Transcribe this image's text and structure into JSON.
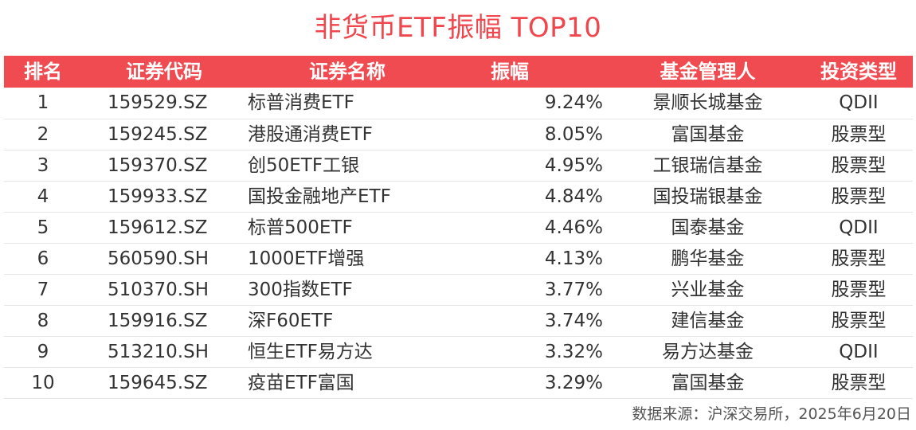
{
  "title": "非货币ETF振幅 TOP10",
  "header": {
    "rank": "排名",
    "code": "证券代码",
    "name": "证券名称",
    "amplitude": "振幅",
    "manager": "基金管理人",
    "type": "投资类型"
  },
  "rows": [
    {
      "rank": "1",
      "code": "159529.SZ",
      "name": "标普消费ETF",
      "amplitude": "9.24%",
      "manager": "景顺长城基金",
      "type": "QDII"
    },
    {
      "rank": "2",
      "code": "159245.SZ",
      "name": "港股通消费ETF",
      "amplitude": "8.05%",
      "manager": "富国基金",
      "type": "股票型"
    },
    {
      "rank": "3",
      "code": "159370.SZ",
      "name": "创50ETF工银",
      "amplitude": "4.95%",
      "manager": "工银瑞信基金",
      "type": "股票型"
    },
    {
      "rank": "4",
      "code": "159933.SZ",
      "name": "国投金融地产ETF",
      "amplitude": "4.84%",
      "manager": "国投瑞银基金",
      "type": "股票型"
    },
    {
      "rank": "5",
      "code": "159612.SZ",
      "name": "标普500ETF",
      "amplitude": "4.46%",
      "manager": "国泰基金",
      "type": "QDII"
    },
    {
      "rank": "6",
      "code": "560590.SH",
      "name": "1000ETF增强",
      "amplitude": "4.13%",
      "manager": "鹏华基金",
      "type": "股票型"
    },
    {
      "rank": "7",
      "code": "510370.SH",
      "name": "300指数ETF",
      "amplitude": "3.77%",
      "manager": "兴业基金",
      "type": "股票型"
    },
    {
      "rank": "8",
      "code": "159916.SZ",
      "name": "深F60ETF",
      "amplitude": "3.74%",
      "manager": "建信基金",
      "type": "股票型"
    },
    {
      "rank": "9",
      "code": "513210.SH",
      "name": "恒生ETF易方达",
      "amplitude": "3.32%",
      "manager": "易方达基金",
      "type": "QDII"
    },
    {
      "rank": "10",
      "code": "159645.SZ",
      "name": "疫苗ETF富国",
      "amplitude": "3.29%",
      "manager": "富国基金",
      "type": "股票型"
    }
  ],
  "source": "数据来源：沪深交易所，2025年6月20日",
  "colors": {
    "accent": "#f14b52",
    "title": "#f0464d",
    "row_divider": "#e6e6e6"
  }
}
